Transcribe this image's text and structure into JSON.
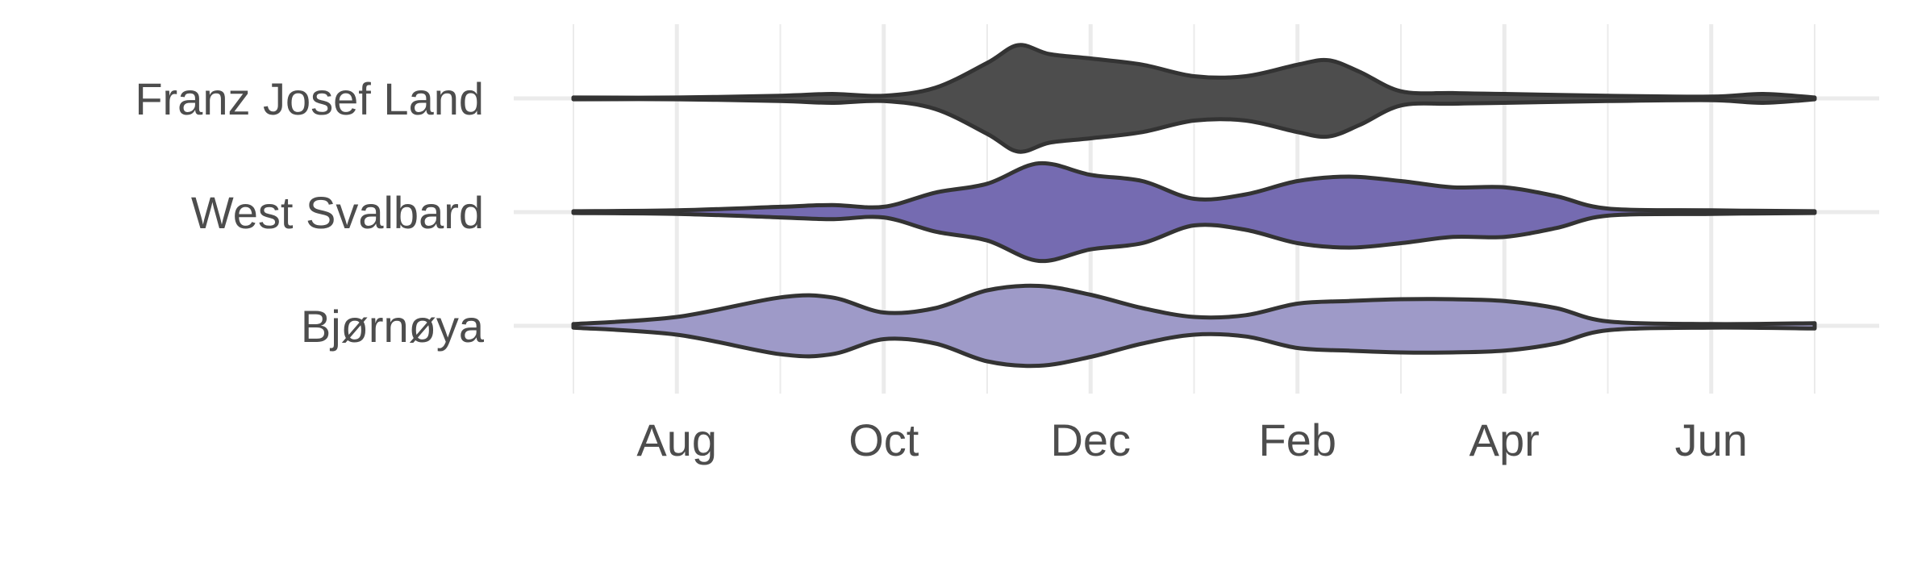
{
  "chart_data": {
    "type": "violin",
    "title": "",
    "xlabel": "",
    "ylabel": "",
    "x_unit": "month",
    "x_ticks": [
      "Aug",
      "Oct",
      "Dec",
      "Feb",
      "Apr",
      "Jun"
    ],
    "x_tick_positions": [
      8,
      10,
      12,
      14,
      16,
      18
    ],
    "xlim": [
      7,
      19
    ],
    "grid": true,
    "legend": "none",
    "series": [
      {
        "name": "Franz Josef Land",
        "color": "#4d4d4d",
        "density": [
          [
            7.0,
            0.01
          ],
          [
            8.0,
            0.01
          ],
          [
            9.0,
            0.03
          ],
          [
            9.5,
            0.05
          ],
          [
            10.0,
            0.03
          ],
          [
            10.5,
            0.12
          ],
          [
            11.0,
            0.4
          ],
          [
            11.3,
            0.6
          ],
          [
            11.6,
            0.5
          ],
          [
            12.0,
            0.45
          ],
          [
            12.5,
            0.38
          ],
          [
            13.0,
            0.25
          ],
          [
            13.5,
            0.25
          ],
          [
            14.0,
            0.38
          ],
          [
            14.3,
            0.43
          ],
          [
            14.6,
            0.3
          ],
          [
            15.0,
            0.08
          ],
          [
            15.5,
            0.06
          ],
          [
            16.0,
            0.05
          ],
          [
            17.0,
            0.03
          ],
          [
            18.0,
            0.02
          ],
          [
            18.5,
            0.05
          ],
          [
            19.0,
            0.01
          ]
        ]
      },
      {
        "name": "West Svalbard",
        "color": "#756bb1",
        "density": [
          [
            7.0,
            0.01
          ],
          [
            8.0,
            0.02
          ],
          [
            9.0,
            0.06
          ],
          [
            9.5,
            0.08
          ],
          [
            10.0,
            0.06
          ],
          [
            10.5,
            0.22
          ],
          [
            11.0,
            0.32
          ],
          [
            11.5,
            0.55
          ],
          [
            12.0,
            0.42
          ],
          [
            12.5,
            0.35
          ],
          [
            13.0,
            0.15
          ],
          [
            13.5,
            0.2
          ],
          [
            14.0,
            0.35
          ],
          [
            14.5,
            0.4
          ],
          [
            15.0,
            0.35
          ],
          [
            15.5,
            0.28
          ],
          [
            16.0,
            0.28
          ],
          [
            16.5,
            0.18
          ],
          [
            17.0,
            0.04
          ],
          [
            18.0,
            0.02
          ],
          [
            19.0,
            0.01
          ]
        ]
      },
      {
        "name": "Bjørnøya",
        "color": "#9e9ac8",
        "density": [
          [
            7.0,
            0.02
          ],
          [
            8.0,
            0.1
          ],
          [
            9.0,
            0.32
          ],
          [
            9.5,
            0.32
          ],
          [
            10.0,
            0.15
          ],
          [
            10.5,
            0.2
          ],
          [
            11.0,
            0.4
          ],
          [
            11.5,
            0.45
          ],
          [
            12.0,
            0.35
          ],
          [
            12.5,
            0.2
          ],
          [
            13.0,
            0.1
          ],
          [
            13.5,
            0.12
          ],
          [
            14.0,
            0.25
          ],
          [
            14.5,
            0.28
          ],
          [
            15.0,
            0.3
          ],
          [
            15.5,
            0.3
          ],
          [
            16.0,
            0.28
          ],
          [
            16.5,
            0.2
          ],
          [
            17.0,
            0.05
          ],
          [
            18.0,
            0.02
          ],
          [
            19.0,
            0.03
          ]
        ]
      }
    ]
  }
}
